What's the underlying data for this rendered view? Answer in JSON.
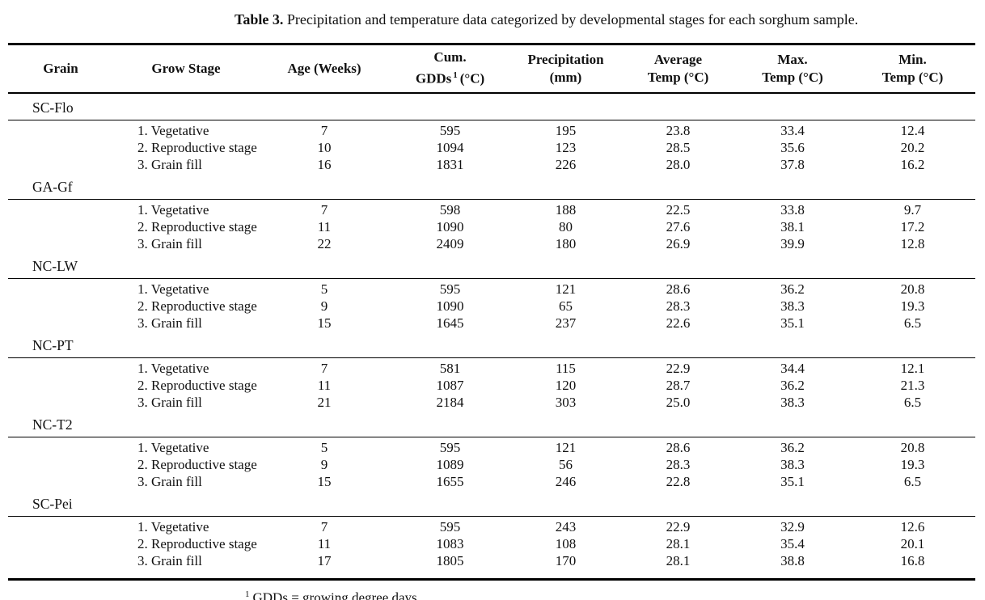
{
  "caption": {
    "label": "Table 3.",
    "text": " Precipitation and temperature data categorized by developmental stages for each sorghum sample."
  },
  "header": {
    "grain": "Grain",
    "grow_stage": "Grow Stage",
    "age": "Age (Weeks)",
    "gdd_line1": "Cum.",
    "gdd_line2_pre": "GDDs",
    "gdd_sup": "1",
    "gdd_line2_post": "(°C)",
    "precip_line1": "Precipitation",
    "precip_line2": "(mm)",
    "avg_line1": "Average",
    "avg_line2": "Temp (°C)",
    "max_line1": "Max.",
    "max_line2": "Temp (°C)",
    "min_line1": "Min.",
    "min_line2": "Temp (°C)"
  },
  "groups": [
    {
      "grain": "SC-Flo",
      "rows": [
        {
          "stage": "1. Vegetative",
          "age": "7",
          "gdd": "595",
          "precip": "195",
          "avg": "23.8",
          "max": "33.4",
          "min": "12.4"
        },
        {
          "stage": "2. Reproductive stage",
          "age": "10",
          "gdd": "1094",
          "precip": "123",
          "avg": "28.5",
          "max": "35.6",
          "min": "20.2"
        },
        {
          "stage": "3. Grain fill",
          "age": "16",
          "gdd": "1831",
          "precip": "226",
          "avg": "28.0",
          "max": "37.8",
          "min": "16.2"
        }
      ]
    },
    {
      "grain": "GA-Gf",
      "rows": [
        {
          "stage": "1. Vegetative",
          "age": "7",
          "gdd": "598",
          "precip": "188",
          "avg": "22.5",
          "max": "33.8",
          "min": "9.7"
        },
        {
          "stage": "2. Reproductive stage",
          "age": "11",
          "gdd": "1090",
          "precip": "80",
          "avg": "27.6",
          "max": "38.1",
          "min": "17.2"
        },
        {
          "stage": "3. Grain fill",
          "age": "22",
          "gdd": "2409",
          "precip": "180",
          "avg": "26.9",
          "max": "39.9",
          "min": "12.8"
        }
      ]
    },
    {
      "grain": "NC-LW",
      "rows": [
        {
          "stage": "1. Vegetative",
          "age": "5",
          "gdd": "595",
          "precip": "121",
          "avg": "28.6",
          "max": "36.2",
          "min": "20.8"
        },
        {
          "stage": "2. Reproductive stage",
          "age": "9",
          "gdd": "1090",
          "precip": "65",
          "avg": "28.3",
          "max": "38.3",
          "min": "19.3"
        },
        {
          "stage": "3. Grain fill",
          "age": "15",
          "gdd": "1645",
          "precip": "237",
          "avg": "22.6",
          "max": "35.1",
          "min": "6.5"
        }
      ]
    },
    {
      "grain": "NC-PT",
      "rows": [
        {
          "stage": "1. Vegetative",
          "age": "7",
          "gdd": "581",
          "precip": "115",
          "avg": "22.9",
          "max": "34.4",
          "min": "12.1"
        },
        {
          "stage": "2. Reproductive stage",
          "age": "11",
          "gdd": "1087",
          "precip": "120",
          "avg": "28.7",
          "max": "36.2",
          "min": "21.3"
        },
        {
          "stage": "3. Grain fill",
          "age": "21",
          "gdd": "2184",
          "precip": "303",
          "avg": "25.0",
          "max": "38.3",
          "min": "6.5"
        }
      ]
    },
    {
      "grain": "NC-T2",
      "rows": [
        {
          "stage": "1. Vegetative",
          "age": "5",
          "gdd": "595",
          "precip": "121",
          "avg": "28.6",
          "max": "36.2",
          "min": "20.8"
        },
        {
          "stage": "2. Reproductive stage",
          "age": "9",
          "gdd": "1089",
          "precip": "56",
          "avg": "28.3",
          "max": "38.3",
          "min": "19.3"
        },
        {
          "stage": "3. Grain fill",
          "age": "15",
          "gdd": "1655",
          "precip": "246",
          "avg": "22.8",
          "max": "35.1",
          "min": "6.5"
        }
      ]
    },
    {
      "grain": "SC-Pei",
      "rows": [
        {
          "stage": "1. Vegetative",
          "age": "7",
          "gdd": "595",
          "precip": "243",
          "avg": "22.9",
          "max": "32.9",
          "min": "12.6"
        },
        {
          "stage": "2. Reproductive stage",
          "age": "11",
          "gdd": "1083",
          "precip": "108",
          "avg": "28.1",
          "max": "35.4",
          "min": "20.1"
        },
        {
          "stage": "3. Grain fill",
          "age": "17",
          "gdd": "1805",
          "precip": "170",
          "avg": "28.1",
          "max": "38.8",
          "min": "16.8"
        }
      ]
    }
  ],
  "footnote": {
    "sup": "1",
    "text": "GDDs = growing degree days."
  }
}
